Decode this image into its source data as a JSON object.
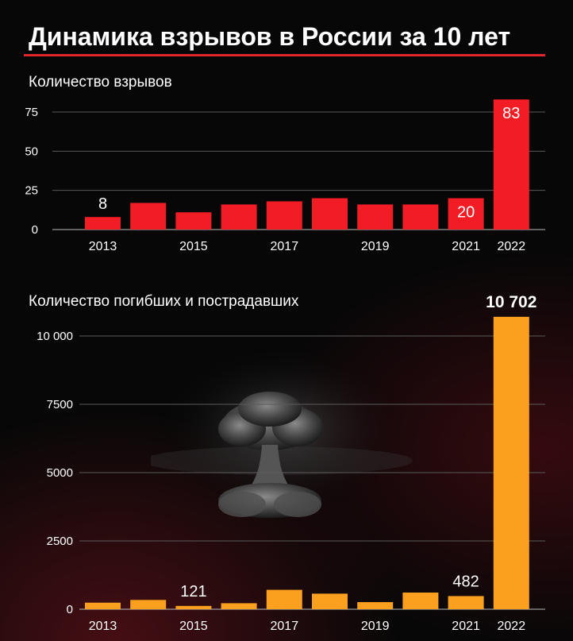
{
  "title": "Динамика взрывов в России за 10 лет",
  "colors": {
    "accent_red": "#e3262c",
    "bar_red": "#f21c24",
    "bar_orange": "#fb9f1f",
    "background": "#070707"
  },
  "decor": {
    "image": "mushroom-cloud-icon"
  },
  "chart_data": [
    {
      "type": "bar",
      "title": "Количество взрывов",
      "xlabel": "",
      "ylabel": "",
      "categories": [
        "2013",
        "2014",
        "2015",
        "2016",
        "2017",
        "2018",
        "2019",
        "2020",
        "2021",
        "2022"
      ],
      "tick_labels": [
        "2013",
        "",
        "2015",
        "",
        "2017",
        "",
        "2019",
        "",
        "2021",
        "2022"
      ],
      "values": [
        8,
        17,
        11,
        16,
        18,
        20,
        16,
        16,
        20,
        83
      ],
      "data_labels": [
        "8",
        "",
        "",
        "",
        "",
        "",
        "",
        "",
        "20",
        "83"
      ],
      "yticks": [
        0,
        25,
        50,
        75
      ],
      "ytick_labels": [
        "0",
        "25",
        "50",
        "75"
      ],
      "ylim": [
        0,
        85
      ],
      "grid": true,
      "color": "#f21c24"
    },
    {
      "type": "bar",
      "title": "Количество погибших и пострадавших",
      "xlabel": "",
      "ylabel": "",
      "categories": [
        "2013",
        "2014",
        "2015",
        "2016",
        "2017",
        "2018",
        "2019",
        "2020",
        "2021",
        "2022"
      ],
      "tick_labels": [
        "2013",
        "",
        "2015",
        "",
        "2017",
        "",
        "2019",
        "",
        "2021",
        "2022"
      ],
      "values": [
        240,
        340,
        121,
        220,
        710,
        570,
        260,
        610,
        482,
        10702
      ],
      "data_labels": [
        "",
        "",
        "121",
        "",
        "",
        "",
        "",
        "",
        "482",
        "10 702"
      ],
      "yticks": [
        0,
        2500,
        5000,
        7500,
        10000
      ],
      "ytick_labels": [
        "0",
        "2500",
        "5000",
        "7500",
        "10 000"
      ],
      "ylim": [
        0,
        11000
      ],
      "grid": true,
      "color": "#fb9f1f"
    }
  ]
}
